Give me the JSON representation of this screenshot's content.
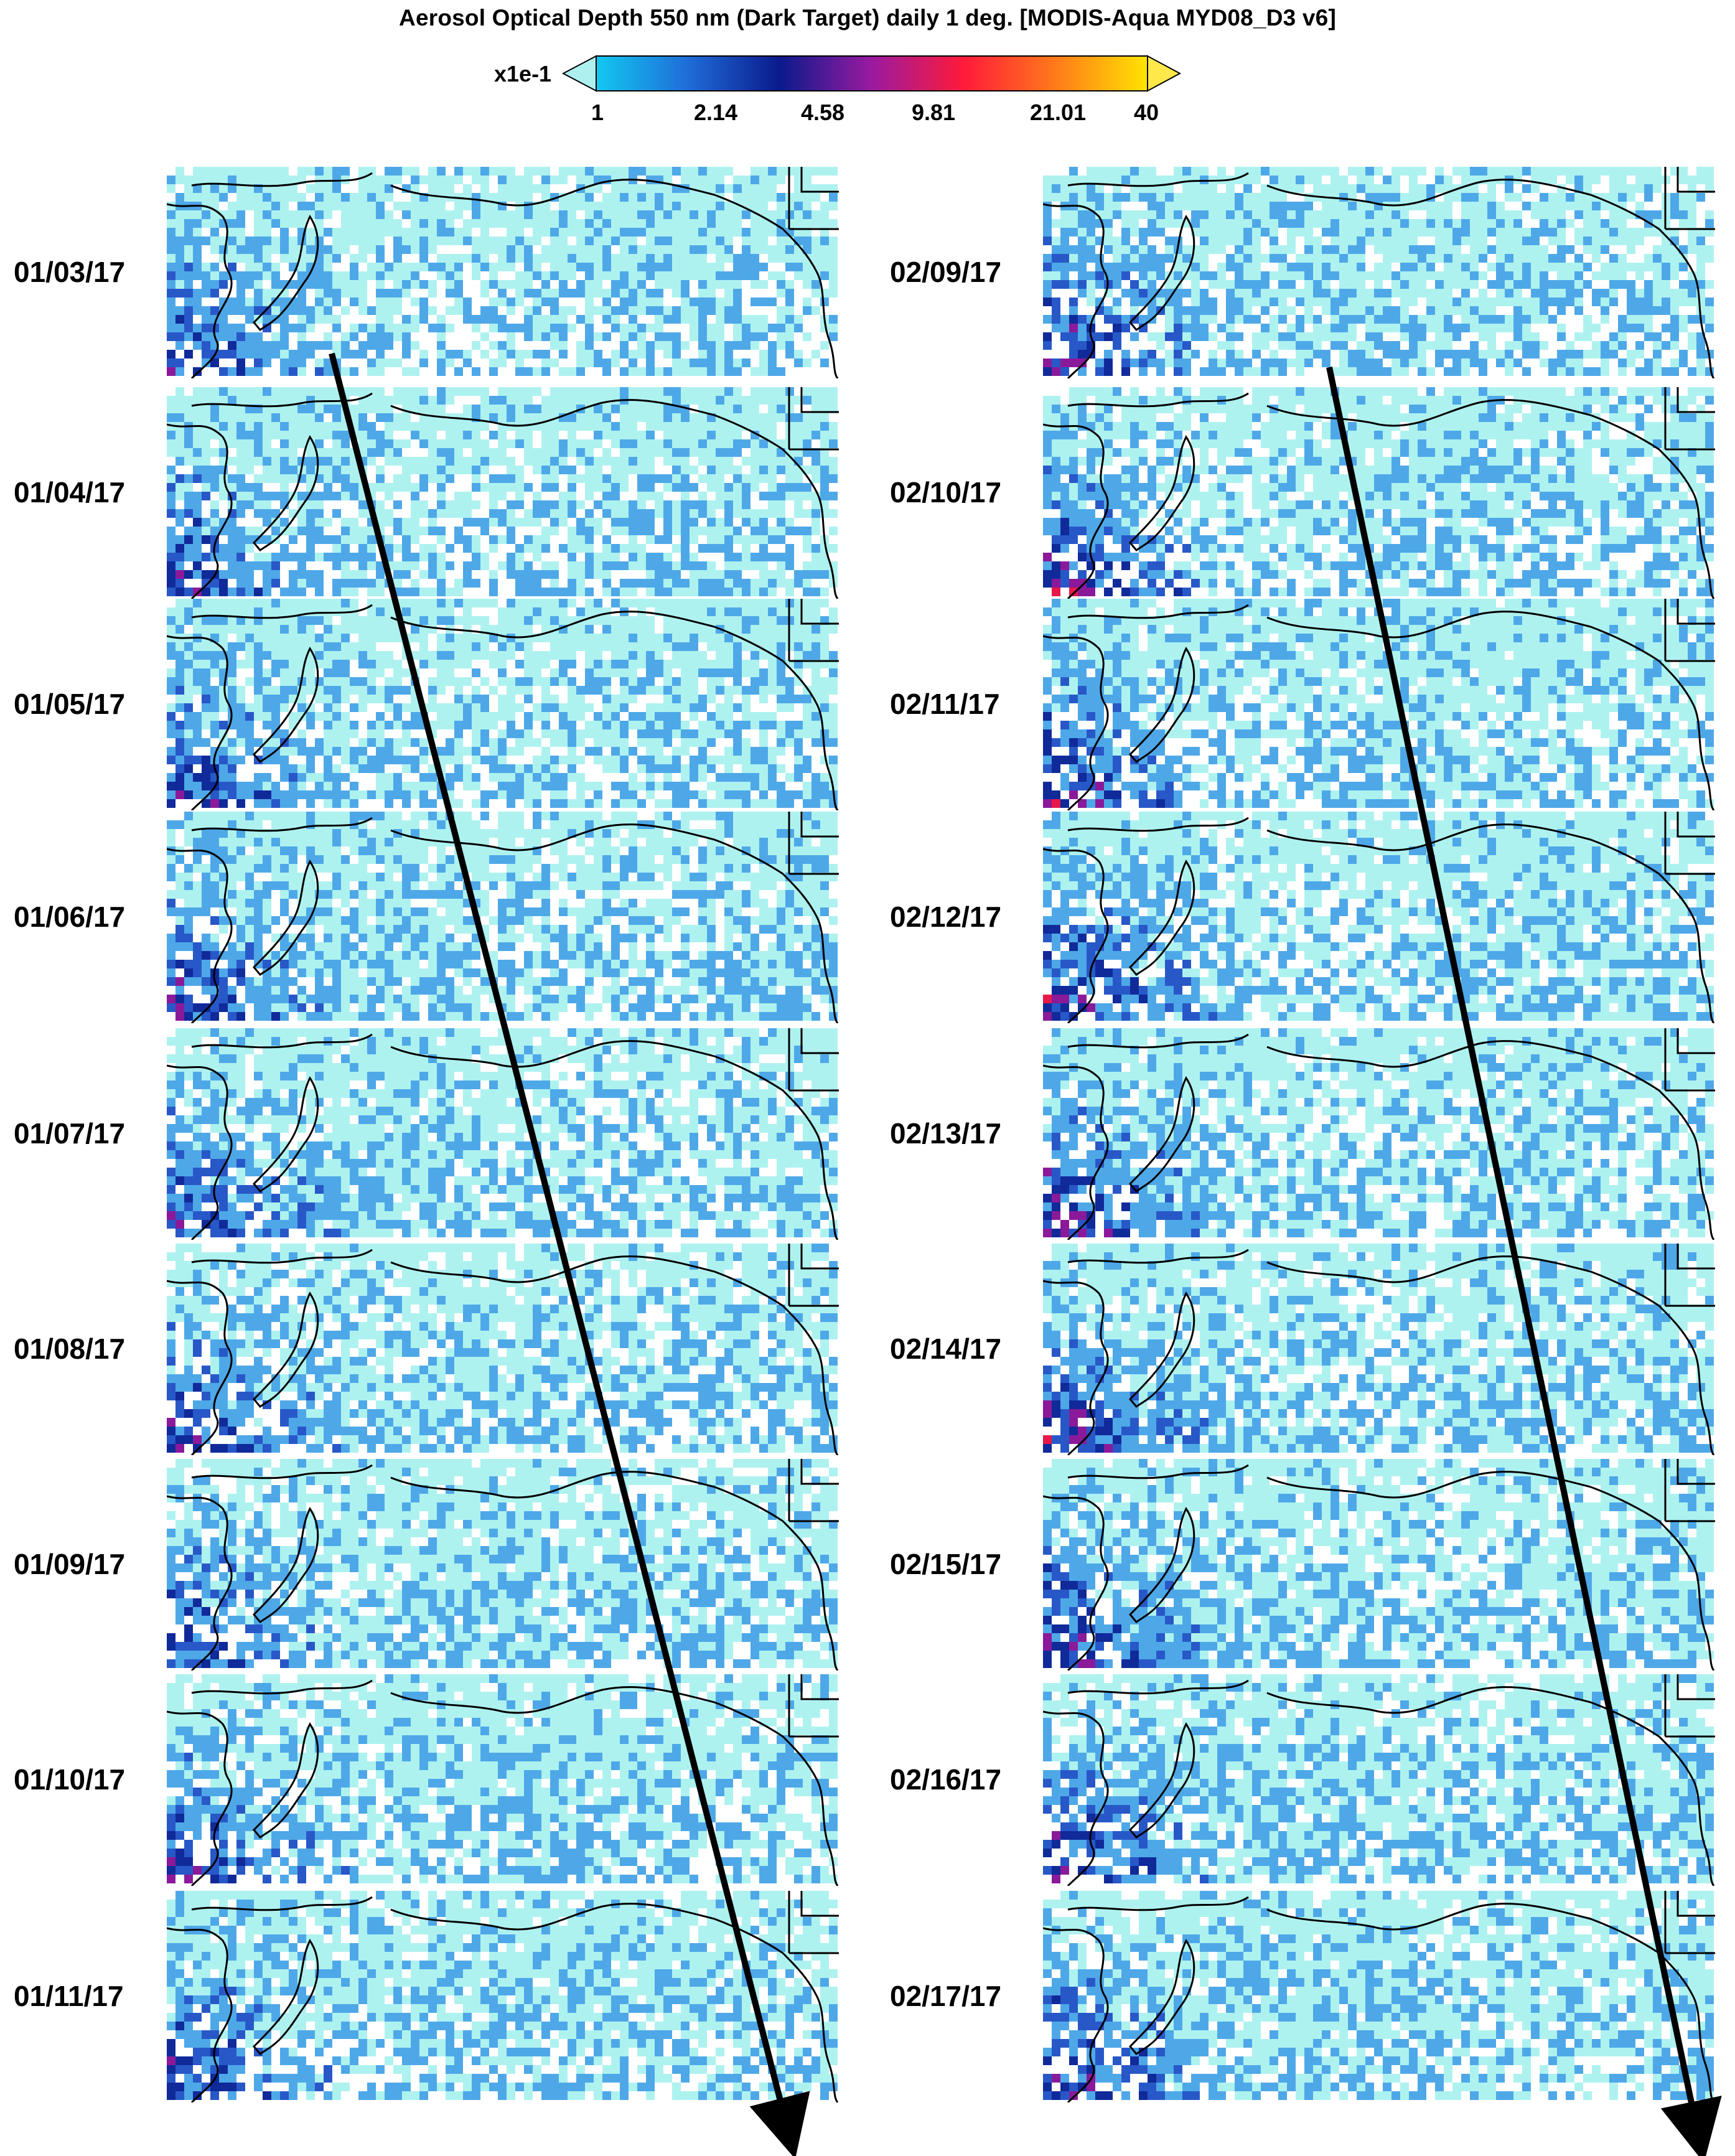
{
  "title": "Aerosol Optical Depth 550 nm (Dark Target) daily 1 deg. [MODIS-Aqua MYD08_D3 v6]",
  "colorbar": {
    "unit_label": "x1e-1",
    "ticks": [
      "1",
      "2.14",
      "4.58",
      "9.81",
      "21.01",
      "40"
    ],
    "under_color": "#aef0f0",
    "over_color": "#ffe84a",
    "stops": [
      "#12c8f0",
      "#1f6cd8",
      "#0a1a8c",
      "#9a1aa0",
      "#ff1a3a",
      "#ff7a1a",
      "#ffe400"
    ]
  },
  "map_colors": {
    "background": "#ffffff",
    "low": "#aef2f0",
    "light": "#4ea8e8",
    "medium": "#2858c8",
    "high": "#102a9a",
    "very_high": "#8a1a9a",
    "extreme": "#e8184a",
    "coast": "#000000"
  },
  "panels_left": [
    {
      "date": "01/03/17"
    },
    {
      "date": "01/04/17"
    },
    {
      "date": "01/05/17"
    },
    {
      "date": "01/06/17"
    },
    {
      "date": "01/07/17"
    },
    {
      "date": "01/08/17"
    },
    {
      "date": "01/09/17"
    },
    {
      "date": "01/10/17"
    },
    {
      "date": "01/11/17"
    }
  ],
  "panels_right": [
    {
      "date": "02/09/17"
    },
    {
      "date": "02/10/17"
    },
    {
      "date": "02/11/17"
    },
    {
      "date": "02/12/17"
    },
    {
      "date": "02/13/17"
    },
    {
      "date": "02/14/17"
    },
    {
      "date": "02/15/17"
    },
    {
      "date": "02/16/17"
    },
    {
      "date": "02/17/17"
    }
  ]
}
